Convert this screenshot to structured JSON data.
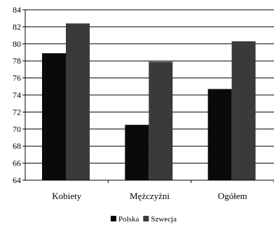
{
  "chart_data": {
    "type": "bar",
    "categories": [
      "Kobiety",
      "Mężczyźni",
      "Ogółem"
    ],
    "series": [
      {
        "name": "Polska",
        "values": [
          78.9,
          70.5,
          74.7
        ],
        "color": "#0a0a0a"
      },
      {
        "name": "Szwecja",
        "values": [
          82.4,
          77.9,
          80.3
        ],
        "color": "#3a3a3a"
      }
    ],
    "ylim": [
      64,
      84
    ],
    "yticks": [
      64,
      66,
      68,
      70,
      72,
      74,
      76,
      78,
      80,
      82,
      84
    ],
    "grid": true,
    "legend_position": "bottom-center",
    "title": "",
    "xlabel": "",
    "ylabel": ""
  }
}
